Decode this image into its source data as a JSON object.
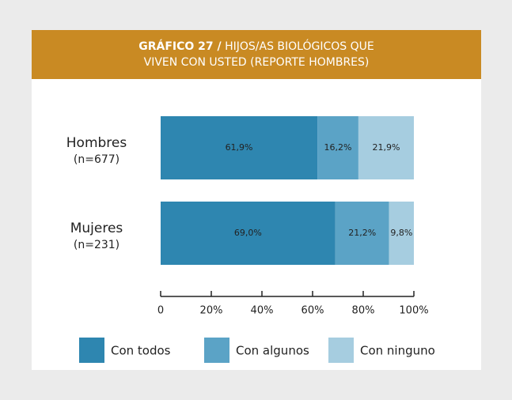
{
  "chart_data": {
    "type": "stacked_barh",
    "title_number": "GRÁFICO 27 /",
    "title": "HIJOS/AS BIOLÓGICOS QUE VIVEN CON USTED (REPORTE HOMBRES)",
    "categories": [
      "Hombres",
      "Mujeres"
    ],
    "category_notes": [
      "(n=677)",
      "(n=231)"
    ],
    "series": [
      {
        "name": "Con todos",
        "color": "#2e86b0",
        "values": [
          61.9,
          69.0
        ],
        "value_labels": [
          "61,9%",
          "69,0%"
        ]
      },
      {
        "name": "Con algunos",
        "color": "#5ba3c6",
        "values": [
          16.2,
          21.2
        ],
        "value_labels": [
          "16,2%",
          "21,2%"
        ]
      },
      {
        "name": "Con ninguno",
        "color": "#a6cde0",
        "values": [
          21.9,
          9.8
        ],
        "value_labels": [
          "21,9%",
          "9,8%"
        ]
      }
    ],
    "xlim": [
      0,
      100
    ],
    "xticks": [
      0,
      {
        "value": 20,
        "label": "20%"
      },
      {
        "value": 40,
        "label": "40%"
      },
      {
        "value": 60,
        "label": "60%"
      },
      {
        "value": 80,
        "label": "80%"
      },
      {
        "value": 100,
        "label": "100%"
      }
    ],
    "legend": "bottom"
  }
}
